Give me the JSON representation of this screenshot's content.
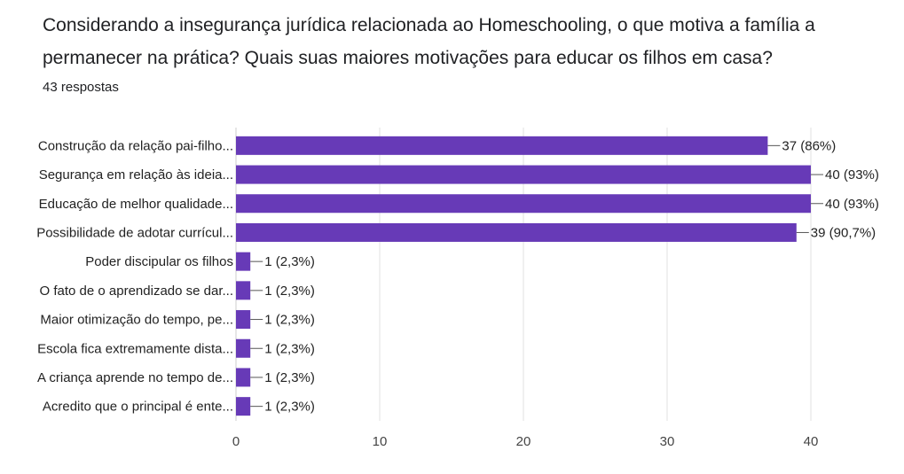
{
  "question": {
    "title": "Considerando a insegurança jurídica relacionada ao Homeschooling, o que motiva a família a permanecer na prática? Quais suas maiores motivações para educar os filhos em casa?",
    "responses": "43 respostas"
  },
  "colors": {
    "bar": "#673ab7",
    "grid": "#e0e0e0",
    "axis": "#cccccc"
  },
  "chart_data": {
    "type": "bar",
    "orientation": "horizontal",
    "categories": [
      "Construção da relação pai-filho...",
      "Segurança em relação às ideia...",
      "Educação de melhor qualidade...",
      "Possibilidade de adotar currícul...",
      "Poder discipular os filhos",
      "O fato de o aprendizado se dar...",
      "Maior otimização do tempo, pe...",
      "Escola fica extremamente dista...",
      "A criança aprende no tempo de...",
      "Acredito que o principal é ente..."
    ],
    "values": [
      37,
      40,
      40,
      39,
      1,
      1,
      1,
      1,
      1,
      1
    ],
    "data_labels": [
      "37 (86%)",
      "40 (93%)",
      "40 (93%)",
      "39 (90,7%)",
      "1 (2,3%)",
      "1 (2,3%)",
      "1 (2,3%)",
      "1 (2,3%)",
      "1 (2,3%)",
      "1 (2,3%)"
    ],
    "xlim": [
      0,
      40
    ],
    "xticks": [
      0,
      10,
      20,
      30,
      40
    ],
    "grid": true
  }
}
